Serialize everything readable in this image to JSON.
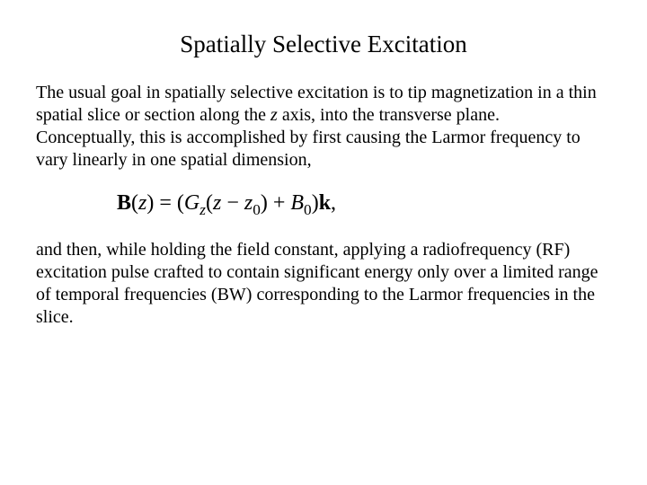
{
  "title": "Spatially Selective Excitation",
  "para1_a": "The usual goal in spatially selective excitation is to tip magnetization in a thin spatial slice or section along the ",
  "para1_z": "z",
  "para1_b": " axis, into the transverse plane.",
  "para1_c": "Conceptually, this is accomplished by first causing the Larmor frequency to vary linearly in one spatial dimension,",
  "eq": {
    "B": "B",
    "open": "(",
    "z1": "z",
    "close_eq": ") = (",
    "G": "G",
    "Gsub": "z",
    "open2": "(",
    "z2": "z",
    "minus": " − ",
    "z3": "z",
    "z3sub": "0",
    "close2": ") + ",
    "B0": "B",
    "B0sub": "0",
    "close3": ")",
    "k": "k",
    "comma": ","
  },
  "para2": "and then, while holding the field constant, applying a radiofrequency (RF) excitation pulse crafted to contain significant energy only over a limited range of temporal frequencies (BW) corresponding to the Larmor frequencies in the slice.",
  "colors": {
    "text": "#000000",
    "background": "#ffffff"
  },
  "typography": {
    "title_fontsize": 27,
    "body_fontsize": 20,
    "equation_fontsize": 24,
    "font_family": "Times New Roman"
  }
}
